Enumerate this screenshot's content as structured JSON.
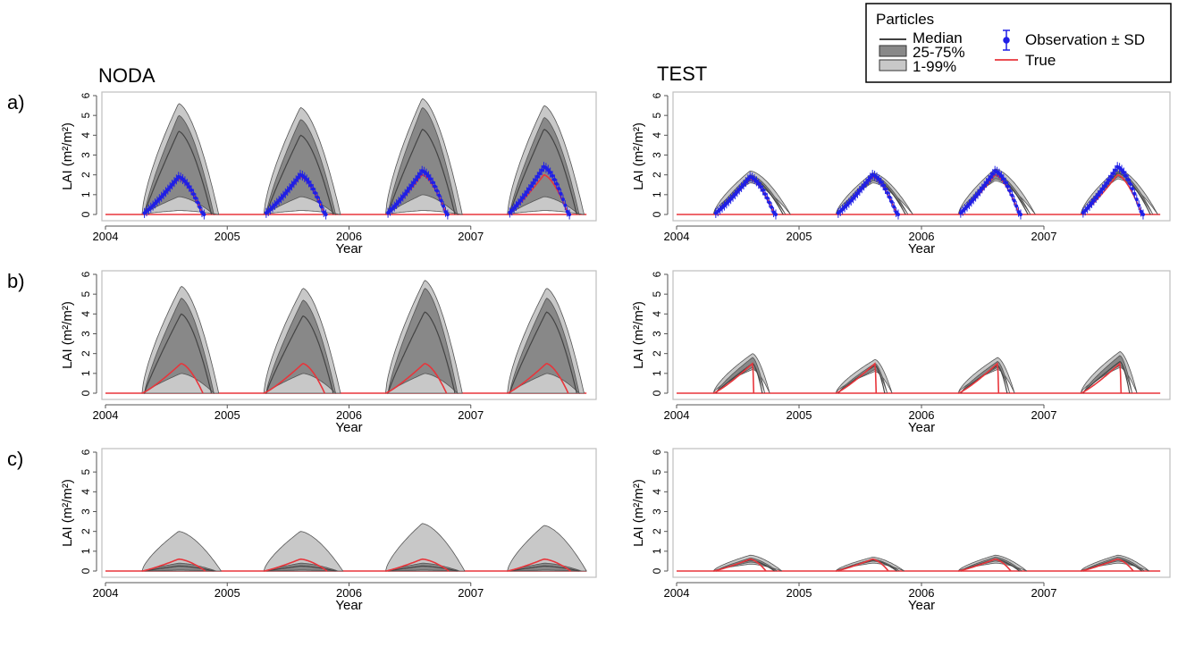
{
  "colors": {
    "band_outer": "#c8c8c8",
    "band_inner": "#888888",
    "band_edge": "#555555",
    "median": "#444444",
    "true_line": "#e8353b",
    "observation": "#1f1fe6",
    "axis": "#555555",
    "frame": "#bfbfbf"
  },
  "column_titles": [
    "NODA",
    "TEST"
  ],
  "row_labels": [
    "a)",
    "b)",
    "c)"
  ],
  "legend": {
    "title": "Particles",
    "median": "Median",
    "iqr": "25-75%",
    "range": "1-99%",
    "observation": "Observation ± SD",
    "true": "True"
  },
  "chart_data": [
    {
      "panel": "a",
      "column": "NODA",
      "type": "area",
      "xlabel": "Year",
      "ylabel": "LAI (m²/m²)",
      "xticks": [
        "2004",
        "2005",
        "2006",
        "2007"
      ],
      "yticks": [
        "0",
        "1",
        "2",
        "3",
        "4",
        "5",
        "6"
      ],
      "xlim": [
        2004.0,
        2008.0
      ],
      "ylim": [
        0,
        6
      ],
      "series": [
        {
          "name": "1-99%",
          "peak_upper": [
            5.6,
            5.4,
            5.85,
            5.5
          ],
          "peak_lower": [
            0.2,
            0.2,
            0.2,
            0.2
          ]
        },
        {
          "name": "25-75%",
          "peak_upper": [
            5.0,
            4.8,
            5.4,
            4.9
          ],
          "peak_lower": [
            0.9,
            0.9,
            1.0,
            0.9
          ]
        },
        {
          "name": "Median",
          "peaks": [
            4.2,
            4.0,
            4.3,
            4.3
          ]
        },
        {
          "name": "True",
          "peaks": [
            1.8,
            1.9,
            2.0,
            2.0
          ]
        },
        {
          "name": "Observation ± SD",
          "peaks": [
            1.9,
            2.0,
            2.2,
            2.4
          ],
          "sd": 0.25
        }
      ],
      "season": {
        "start_offset": 0.3,
        "peak_offset": 0.6,
        "end_offset": 0.85
      }
    },
    {
      "panel": "a",
      "column": "TEST",
      "type": "area",
      "xlabel": "Year",
      "ylabel": "LAI (m²/m²)",
      "xticks": [
        "2004",
        "2005",
        "2006",
        "2007"
      ],
      "yticks": [
        "0",
        "1",
        "2",
        "3",
        "4",
        "5",
        "6"
      ],
      "xlim": [
        2004.0,
        2008.0
      ],
      "ylim": [
        0,
        6
      ],
      "series": [
        {
          "name": "1-99%",
          "peak_upper": [
            2.2,
            2.1,
            2.3,
            2.3
          ],
          "peak_lower": [
            1.6,
            1.6,
            1.7,
            1.8
          ]
        },
        {
          "name": "25-75%",
          "peak_upper": [
            2.0,
            2.0,
            2.1,
            2.2
          ],
          "peak_lower": [
            1.7,
            1.7,
            1.8,
            1.9
          ]
        },
        {
          "name": "Median",
          "peaks": [
            1.9,
            1.9,
            2.0,
            2.1
          ]
        },
        {
          "name": "True",
          "peaks": [
            1.8,
            1.9,
            2.0,
            2.0
          ]
        },
        {
          "name": "Observation ± SD",
          "peaks": [
            1.9,
            2.0,
            2.2,
            2.4
          ],
          "sd": 0.25
        }
      ],
      "season": {
        "start_offset": 0.3,
        "peak_offset": 0.6,
        "end_offset": 0.85
      }
    },
    {
      "panel": "b",
      "column": "NODA",
      "type": "area",
      "xlabel": "Year",
      "ylabel": "LAI (m²/m²)",
      "xticks": [
        "2004",
        "2005",
        "2006",
        "2007"
      ],
      "yticks": [
        "0",
        "1",
        "2",
        "3",
        "4",
        "5",
        "6"
      ],
      "xlim": [
        2004.0,
        2008.0
      ],
      "ylim": [
        0,
        6
      ],
      "series": [
        {
          "name": "1-99%",
          "peak_upper": [
            5.4,
            5.3,
            5.7,
            5.3
          ],
          "peak_lower": [
            0.0,
            0.0,
            0.0,
            0.0
          ]
        },
        {
          "name": "25-75%",
          "peak_upper": [
            4.8,
            4.7,
            5.3,
            4.8
          ],
          "peak_lower": [
            1.0,
            1.0,
            1.0,
            1.0
          ]
        },
        {
          "name": "Median",
          "peaks": [
            4.0,
            3.9,
            4.1,
            4.1
          ]
        },
        {
          "name": "True",
          "peaks": [
            1.5,
            1.5,
            1.5,
            1.5
          ]
        }
      ],
      "season": {
        "start_offset": 0.3,
        "peak_offset": 0.62,
        "end_offset": 0.85
      }
    },
    {
      "panel": "b",
      "column": "TEST",
      "type": "area",
      "xlabel": "Year",
      "ylabel": "LAI (m²/m²)",
      "xticks": [
        "2004",
        "2005",
        "2006",
        "2007"
      ],
      "yticks": [
        "0",
        "1",
        "2",
        "3",
        "4",
        "5",
        "6"
      ],
      "xlim": [
        2004.0,
        2008.0
      ],
      "ylim": [
        0,
        6
      ],
      "series": [
        {
          "name": "1-99%",
          "peak_upper": [
            2.0,
            1.7,
            1.8,
            2.1
          ],
          "peak_lower": [
            1.2,
            1.1,
            1.2,
            1.3
          ]
        },
        {
          "name": "25-75%",
          "peak_upper": [
            1.8,
            1.5,
            1.6,
            1.9
          ],
          "peak_lower": [
            1.3,
            1.2,
            1.3,
            1.4
          ]
        },
        {
          "name": "Median",
          "peaks": [
            1.5,
            1.4,
            1.4,
            1.6
          ]
        },
        {
          "name": "True",
          "peaks": [
            1.5,
            1.5,
            1.5,
            1.5
          ]
        }
      ],
      "season": {
        "start_offset": 0.3,
        "peak_offset": 0.62,
        "end_offset": 0.68
      }
    },
    {
      "panel": "c",
      "column": "NODA",
      "type": "area",
      "xlabel": "Year",
      "ylabel": "LAI (m²/m²)",
      "xticks": [
        "2004",
        "2005",
        "2006",
        "2007"
      ],
      "yticks": [
        "0",
        "1",
        "2",
        "3",
        "4",
        "5",
        "6"
      ],
      "xlim": [
        2004.0,
        2008.0
      ],
      "ylim": [
        0,
        6
      ],
      "series": [
        {
          "name": "1-99%",
          "peak_upper": [
            2.0,
            2.0,
            2.4,
            2.3
          ],
          "peak_lower": [
            0.0,
            0.0,
            0.0,
            0.0
          ]
        },
        {
          "name": "25-75%",
          "peak_upper": [
            0.4,
            0.4,
            0.4,
            0.4
          ],
          "peak_lower": [
            0.05,
            0.05,
            0.05,
            0.05
          ]
        },
        {
          "name": "Median",
          "peaks": [
            0.25,
            0.25,
            0.25,
            0.25
          ]
        },
        {
          "name": "True",
          "peaks": [
            0.6,
            0.6,
            0.6,
            0.6
          ]
        }
      ],
      "season": {
        "start_offset": 0.3,
        "peak_offset": 0.6,
        "end_offset": 0.87
      }
    },
    {
      "panel": "c",
      "column": "TEST",
      "type": "area",
      "xlabel": "Year",
      "ylabel": "LAI (m²/m²)",
      "xticks": [
        "2004",
        "2005",
        "2006",
        "2007"
      ],
      "yticks": [
        "0",
        "1",
        "2",
        "3",
        "4",
        "5",
        "6"
      ],
      "xlim": [
        2004.0,
        2008.0
      ],
      "ylim": [
        0,
        6
      ],
      "series": [
        {
          "name": "1-99%",
          "peak_upper": [
            0.8,
            0.7,
            0.8,
            0.8
          ],
          "peak_lower": [
            0.35,
            0.4,
            0.4,
            0.4
          ]
        },
        {
          "name": "25-75%",
          "peak_upper": [
            0.65,
            0.6,
            0.7,
            0.7
          ],
          "peak_lower": [
            0.45,
            0.5,
            0.5,
            0.5
          ]
        },
        {
          "name": "Median",
          "peaks": [
            0.55,
            0.55,
            0.6,
            0.6
          ]
        },
        {
          "name": "True",
          "peaks": [
            0.6,
            0.6,
            0.6,
            0.6
          ]
        }
      ],
      "season": {
        "start_offset": 0.3,
        "peak_offset": 0.6,
        "end_offset": 0.78
      }
    }
  ]
}
